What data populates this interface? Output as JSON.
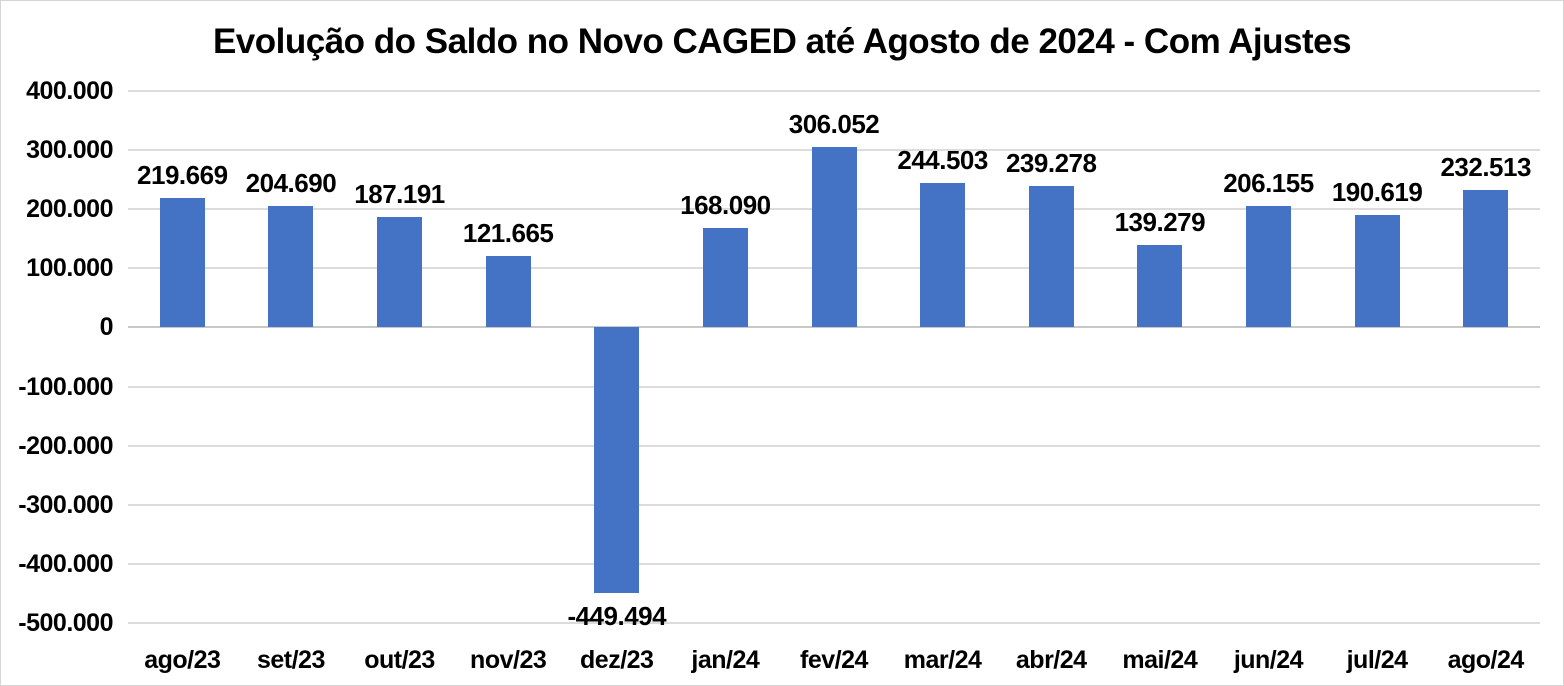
{
  "chart_data": {
    "type": "bar",
    "title": "Evolução do Saldo no Novo CAGED até Agosto de 2024 - Com Ajustes",
    "categories": [
      "ago/23",
      "set/23",
      "out/23",
      "nov/23",
      "dez/23",
      "jan/24",
      "fev/24",
      "mar/24",
      "abr/24",
      "mai/24",
      "jun/24",
      "jul/24",
      "ago/24"
    ],
    "values": [
      219669,
      204690,
      187191,
      121665,
      -449494,
      168090,
      306052,
      244503,
      239278,
      139279,
      206155,
      190619,
      232513
    ],
    "data_labels": [
      "219.669",
      "204.690",
      "187.191",
      "121.665",
      "-449.494",
      "168.090",
      "306.052",
      "244.503",
      "239.278",
      "139.279",
      "206.155",
      "190.619",
      "232.513"
    ],
    "y_tick_labels": [
      "400.000",
      "300.000",
      "200.000",
      "100.000",
      "0",
      "-100.000",
      "-200.000",
      "-300.000",
      "-400.000",
      "-500.000"
    ],
    "y_tick_values": [
      400000,
      300000,
      200000,
      100000,
      0,
      -100000,
      -200000,
      -300000,
      -400000,
      -500000
    ],
    "ylim": [
      -500000,
      400000
    ],
    "xlabel": "",
    "ylabel": "",
    "grid": true,
    "legend": "none",
    "colors": {
      "bar": "#4472C4",
      "gridline": "#dcdcdc",
      "zero_axis_line": "#c8c8c8",
      "text": "#000000",
      "background": "#ffffff",
      "chart_border": "#d5d5d5"
    }
  }
}
